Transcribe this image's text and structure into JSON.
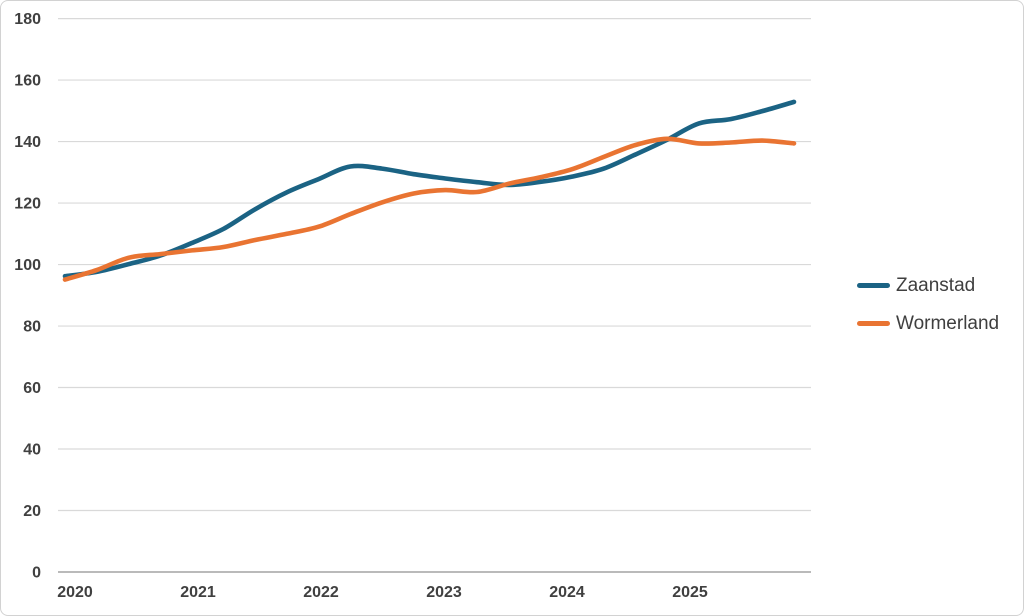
{
  "chart_data": {
    "type": "line",
    "title": "",
    "xlabel": "",
    "ylabel": "",
    "ylim": [
      0,
      180
    ],
    "y_ticks": [
      0,
      20,
      40,
      60,
      80,
      100,
      120,
      140,
      160,
      180
    ],
    "x_tick_labels": [
      "2020",
      "2021",
      "2022",
      "2023",
      "2024",
      "2025"
    ],
    "grid": true,
    "legend_position": "right",
    "line_smoothing": true,
    "categories": [
      "2020 Q1",
      "2020 Q2",
      "2020 Q3",
      "2020 Q4",
      "2021 Q1",
      "2021 Q2",
      "2021 Q3",
      "2021 Q4",
      "2022 Q1",
      "2022 Q2",
      "2022 Q3",
      "2022 Q4",
      "2023 Q1",
      "2023 Q2",
      "2023 Q3",
      "2023 Q4",
      "2024 Q1",
      "2024 Q2",
      "2024 Q3",
      "2024 Q4",
      "2025 Q1",
      "2025 Q2",
      "2025 Q3",
      "2025 Q4"
    ],
    "series": [
      {
        "name": "Zaanstad",
        "color": "#1b6384",
        "values": [
          96.2,
          97.6,
          100.1,
          102.9,
          107.0,
          111.6,
          118.0,
          123.5,
          127.8,
          131.9,
          131.2,
          129.4,
          128.0,
          126.8,
          125.9,
          126.9,
          128.6,
          131.2,
          135.8,
          140.6,
          145.9,
          147.3,
          149.9,
          152.9
        ]
      },
      {
        "name": "Wormerland",
        "color": "#e97432",
        "values": [
          95.1,
          98.2,
          102.2,
          103.4,
          104.6,
          105.7,
          108.0,
          110.0,
          112.3,
          116.4,
          120.2,
          123.1,
          124.2,
          123.6,
          126.3,
          128.4,
          131.0,
          135.0,
          138.9,
          140.9,
          139.4,
          139.7,
          140.3,
          139.4
        ]
      }
    ],
    "colors": {
      "gridline": "#d9d9d9",
      "axis_line": "#a3a3a3",
      "tick_label_text": "#404040",
      "legend_text": "#3f3f3f",
      "background": "#ffffff"
    }
  }
}
